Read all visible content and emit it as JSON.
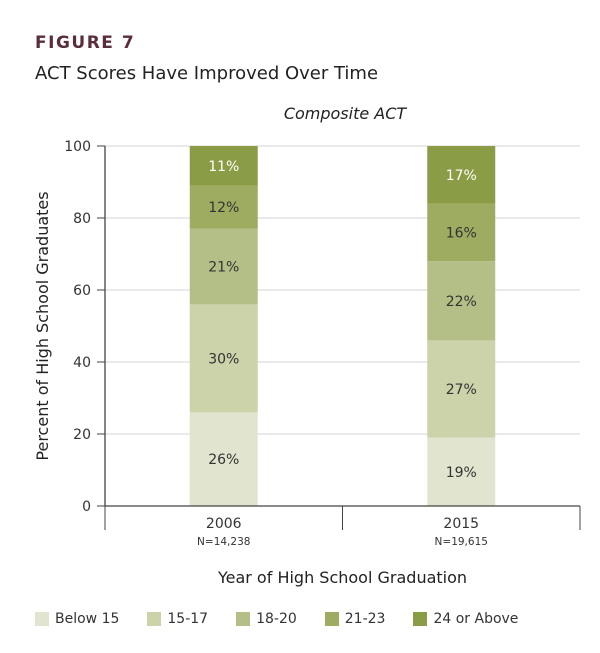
{
  "figure_label": "FIGURE 7",
  "title": "ACT Scores Have Improved Over Time",
  "chart_data": {
    "type": "stacked-bar",
    "subtitle": "Composite ACT",
    "xlabel": "Year of High School Graduation",
    "ylabel": "Percent of High School Graduates",
    "ylim": [
      0,
      100
    ],
    "yticks": [
      "0",
      "20",
      "40",
      "60",
      "80",
      "100"
    ],
    "grid": true,
    "legend_position": "bottom",
    "categories": [
      "2006",
      "2015"
    ],
    "category_notes": [
      "N=14,238",
      "N=19,615"
    ],
    "series": [
      {
        "name": "Below 15",
        "color": "#e1e5d0",
        "values": [
          26,
          19
        ],
        "labels": [
          "26%",
          "19%"
        ]
      },
      {
        "name": "15-17",
        "color": "#ccd2a9",
        "values": [
          30,
          27
        ],
        "labels": [
          "30%",
          "27%"
        ]
      },
      {
        "name": "18-20",
        "color": "#b4bf88",
        "values": [
          21,
          22
        ],
        "labels": [
          "21%",
          "22%"
        ]
      },
      {
        "name": "21-23",
        "color": "#9eac62",
        "values": [
          12,
          16
        ],
        "labels": [
          "12%",
          "16%"
        ]
      },
      {
        "name": "24 or Above",
        "color": "#8a9c45",
        "values": [
          11,
          17
        ],
        "labels": [
          "11%",
          "17%"
        ]
      }
    ]
  }
}
